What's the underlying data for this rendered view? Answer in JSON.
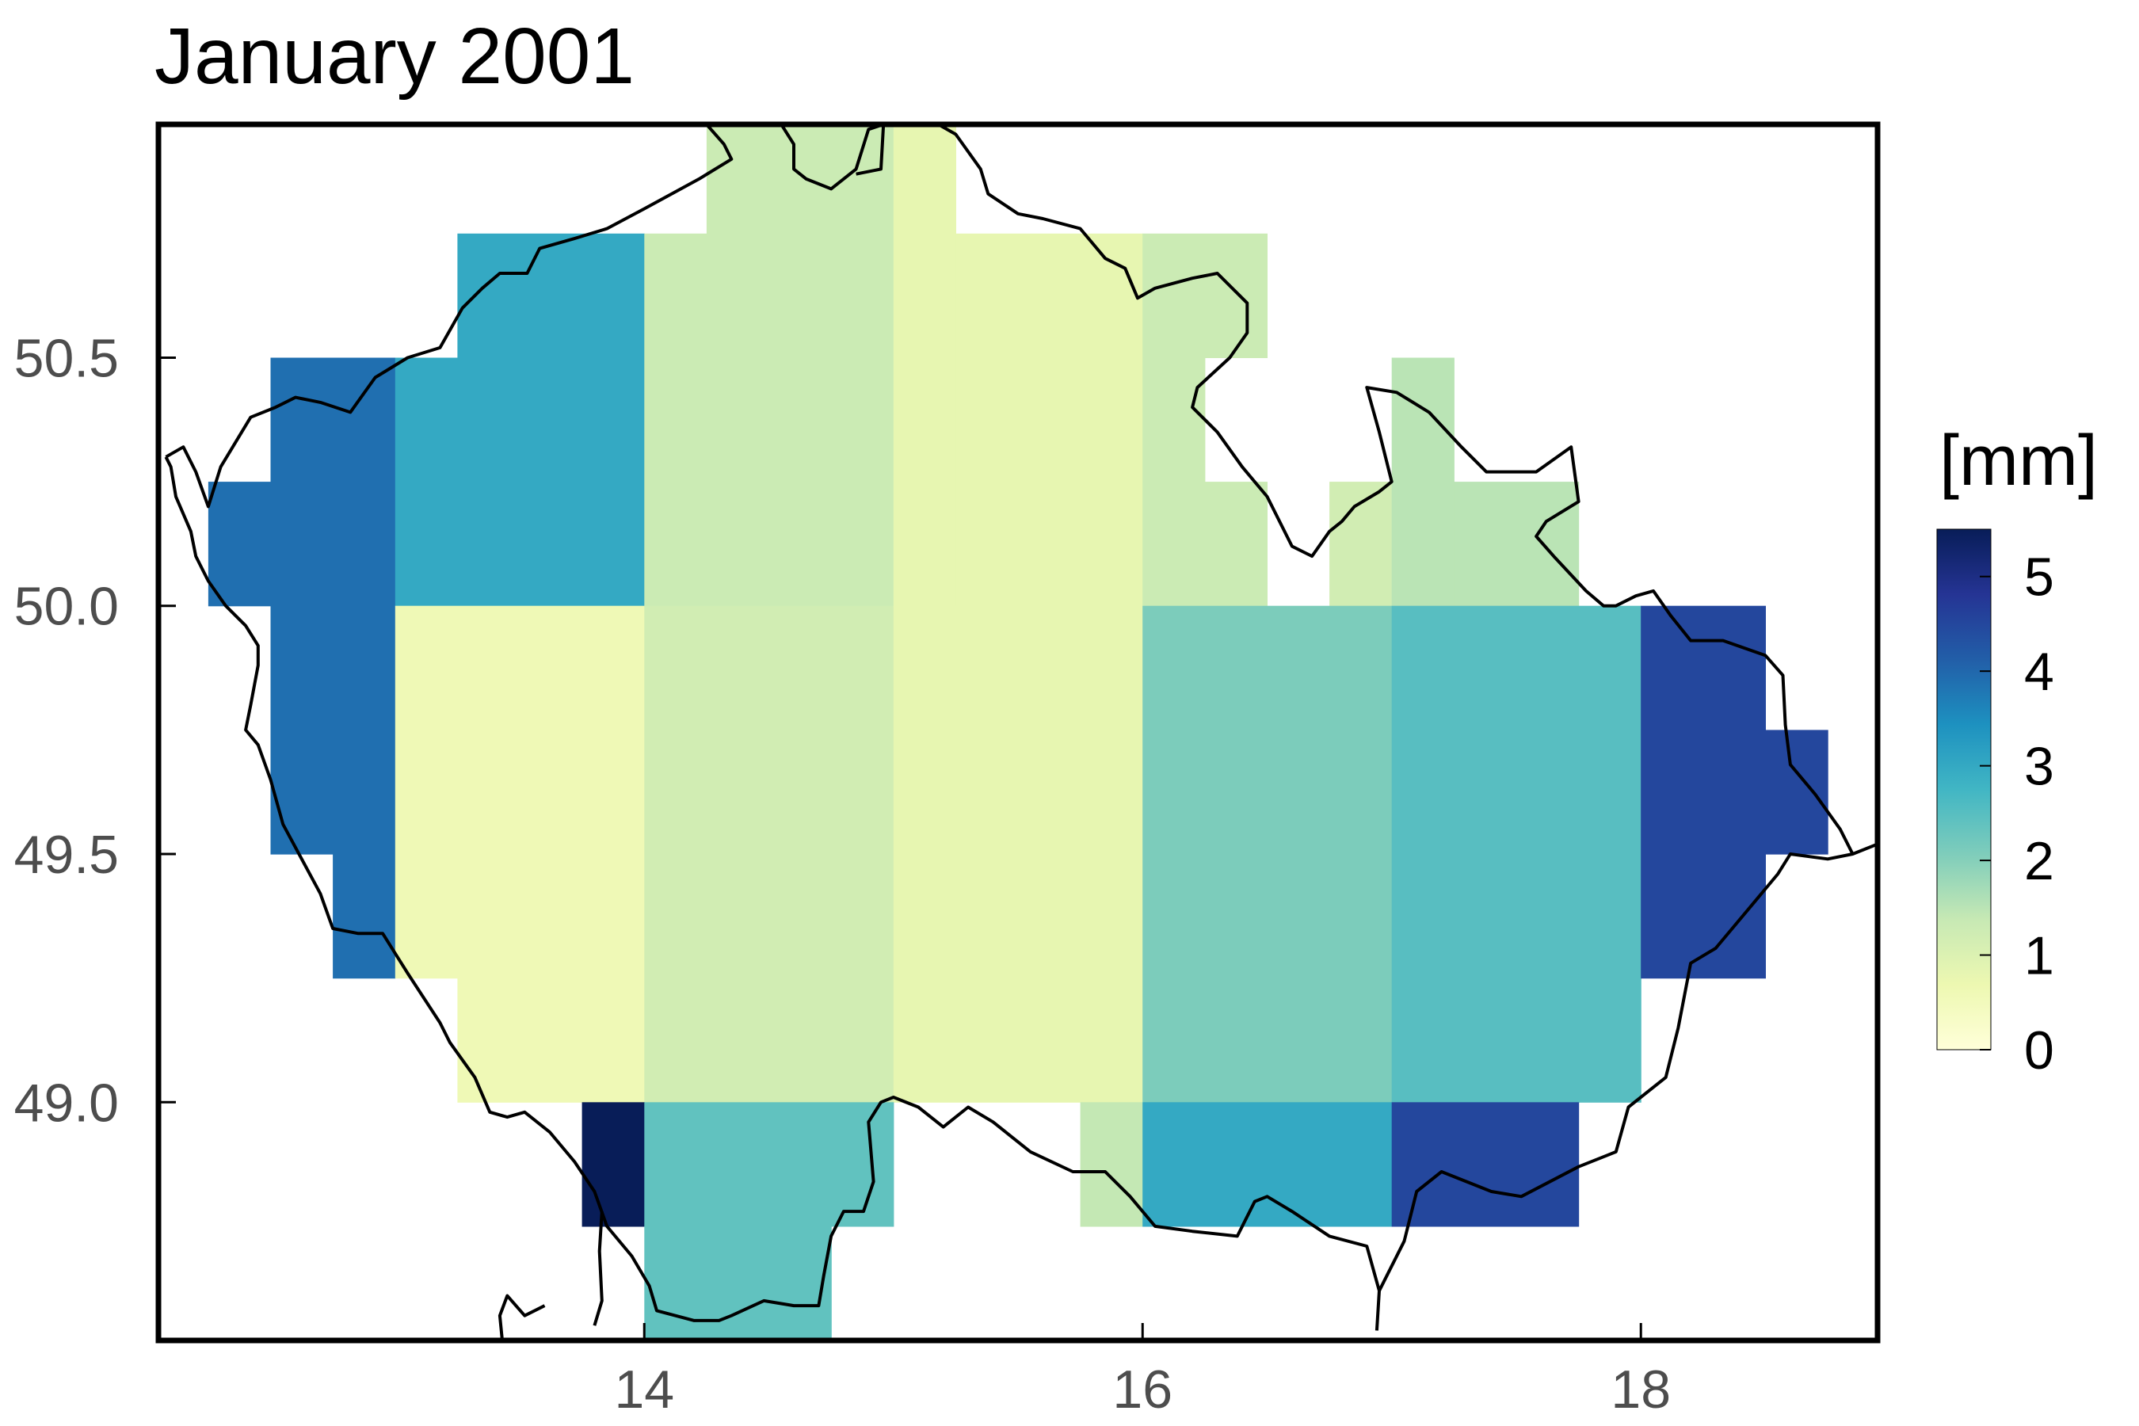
{
  "title": "January 2001",
  "colorbar": {
    "label": "[mm]",
    "range": [
      0,
      5.5
    ],
    "ticks": [
      "0",
      "1",
      "2",
      "3",
      "4",
      "5"
    ],
    "tick_values": [
      0,
      1,
      2,
      3,
      4,
      5
    ],
    "colormap": "YlGnBu",
    "stops": [
      "#ffffd9",
      "#edf8b1",
      "#c7e9b4",
      "#7fcdbb",
      "#41b6c4",
      "#1d91c0",
      "#225ea8",
      "#253494",
      "#081d58"
    ]
  },
  "chart_data": {
    "type": "heatmap",
    "title": "January 2001",
    "xlabel": "",
    "ylabel": "",
    "xlim": [
      12.05,
      18.95
    ],
    "ylim": [
      48.52,
      50.97
    ],
    "x_ticks": [
      "14",
      "16",
      "18"
    ],
    "x_tick_values": [
      14,
      16,
      18
    ],
    "y_ticks": [
      "49.0",
      "49.5",
      "50.0",
      "50.5"
    ],
    "y_tick_values": [
      49.0,
      49.5,
      50.0,
      50.5
    ],
    "units": "[mm]",
    "cells": [
      {
        "x0": 12.25,
        "x1": 12.5,
        "y0": 50.0,
        "y1": 50.25,
        "value": 3.9
      },
      {
        "x0": 12.5,
        "x1": 13.0,
        "y0": 50.0,
        "y1": 50.5,
        "value": 3.9
      },
      {
        "x0": 12.5,
        "x1": 13.0,
        "y0": 49.5,
        "y1": 50.0,
        "value": 3.9
      },
      {
        "x0": 12.75,
        "x1": 13.0,
        "y0": 49.25,
        "y1": 49.5,
        "value": 3.9
      },
      {
        "x0": 13.0,
        "x1": 13.25,
        "y0": 50.0,
        "y1": 50.5,
        "value": 3.0
      },
      {
        "x0": 13.25,
        "x1": 14.0,
        "y0": 50.0,
        "y1": 50.75,
        "value": 3.0
      },
      {
        "x0": 13.0,
        "x1": 14.0,
        "y0": 49.25,
        "y1": 50.0,
        "value": 0.6
      },
      {
        "x0": 13.25,
        "x1": 14.0,
        "y0": 49.0,
        "y1": 49.25,
        "value": 0.6
      },
      {
        "x0": 14.0,
        "x1": 14.25,
        "y0": 50.0,
        "y1": 50.75,
        "value": 1.3
      },
      {
        "x0": 14.25,
        "x1": 15.0,
        "y0": 50.0,
        "y1": 51.0,
        "value": 1.3
      },
      {
        "x0": 14.0,
        "x1": 15.0,
        "y0": 49.0,
        "y1": 50.0,
        "value": 1.2
      },
      {
        "x0": 15.0,
        "x1": 15.25,
        "y0": 50.0,
        "y1": 51.0,
        "value": 0.8
      },
      {
        "x0": 15.25,
        "x1": 16.0,
        "y0": 50.0,
        "y1": 50.75,
        "value": 0.8
      },
      {
        "x0": 15.0,
        "x1": 16.0,
        "y0": 49.0,
        "y1": 50.0,
        "value": 0.8
      },
      {
        "x0": 16.0,
        "x1": 16.5,
        "y0": 50.5,
        "y1": 50.75,
        "value": 1.3
      },
      {
        "x0": 16.0,
        "x1": 16.25,
        "y0": 50.25,
        "y1": 50.5,
        "value": 1.3
      },
      {
        "x0": 16.0,
        "x1": 16.5,
        "y0": 50.0,
        "y1": 50.25,
        "value": 1.3
      },
      {
        "x0": 16.75,
        "x1": 17.0,
        "y0": 50.0,
        "y1": 50.25,
        "value": 1.2
      },
      {
        "x0": 17.0,
        "x1": 17.25,
        "y0": 50.0,
        "y1": 50.5,
        "value": 1.5
      },
      {
        "x0": 17.25,
        "x1": 17.75,
        "y0": 50.0,
        "y1": 50.25,
        "value": 1.5
      },
      {
        "x0": 16.0,
        "x1": 17.0,
        "y0": 49.0,
        "y1": 50.0,
        "value": 2.1
      },
      {
        "x0": 17.0,
        "x1": 18.0,
        "y0": 49.0,
        "y1": 50.0,
        "value": 2.5
      },
      {
        "x0": 18.0,
        "x1": 18.5,
        "y0": 49.25,
        "y1": 50.0,
        "value": 4.5
      },
      {
        "x0": 18.5,
        "x1": 18.75,
        "y0": 49.5,
        "y1": 49.75,
        "value": 4.5
      },
      {
        "x0": 13.75,
        "x1": 14.0,
        "y0": 48.75,
        "y1": 49.0,
        "value": 5.5
      },
      {
        "x0": 14.0,
        "x1": 15.0,
        "y0": 48.75,
        "y1": 49.0,
        "value": 2.4
      },
      {
        "x0": 14.0,
        "x1": 14.75,
        "y0": 48.5,
        "y1": 48.75,
        "value": 2.4
      },
      {
        "x0": 15.75,
        "x1": 16.0,
        "y0": 48.75,
        "y1": 49.0,
        "value": 1.4
      },
      {
        "x0": 16.0,
        "x1": 17.0,
        "y0": 48.75,
        "y1": 49.0,
        "value": 3.0
      },
      {
        "x0": 17.0,
        "x1": 17.75,
        "y0": 48.75,
        "y1": 49.0,
        "value": 4.5
      }
    ],
    "borders": [
      [
        [
          12.08,
          50.3
        ],
        [
          12.15,
          50.32
        ],
        [
          12.2,
          50.27
        ],
        [
          12.25,
          50.2
        ],
        [
          12.3,
          50.28
        ],
        [
          12.42,
          50.38
        ],
        [
          12.52,
          50.4
        ],
        [
          12.6,
          50.42
        ],
        [
          12.7,
          50.41
        ],
        [
          12.82,
          50.39
        ],
        [
          12.92,
          50.46
        ],
        [
          13.05,
          50.5
        ],
        [
          13.18,
          50.52
        ],
        [
          13.27,
          50.6
        ],
        [
          13.35,
          50.64
        ],
        [
          13.42,
          50.67
        ],
        [
          13.53,
          50.67
        ],
        [
          13.58,
          50.72
        ],
        [
          13.72,
          50.74
        ],
        [
          13.85,
          50.76
        ],
        [
          14.0,
          50.8
        ],
        [
          14.22,
          50.86
        ],
        [
          14.35,
          50.9
        ],
        [
          14.32,
          50.93
        ],
        [
          14.25,
          50.97
        ]
      ],
      [
        [
          14.55,
          50.97
        ],
        [
          14.6,
          50.93
        ],
        [
          14.6,
          50.88
        ],
        [
          14.65,
          50.86
        ],
        [
          14.75,
          50.84
        ],
        [
          14.85,
          50.88
        ],
        [
          14.9,
          50.96
        ],
        [
          14.96,
          50.97
        ]
      ],
      [
        [
          14.96,
          50.97
        ],
        [
          14.95,
          50.88
        ],
        [
          14.85,
          50.87
        ]
      ],
      [
        [
          15.18,
          50.97
        ],
        [
          15.25,
          50.95
        ],
        [
          15.35,
          50.88
        ],
        [
          15.38,
          50.83
        ],
        [
          15.5,
          50.79
        ],
        [
          15.6,
          50.78
        ],
        [
          15.75,
          50.76
        ],
        [
          15.85,
          50.7
        ],
        [
          15.93,
          50.68
        ],
        [
          15.98,
          50.62
        ],
        [
          16.05,
          50.64
        ],
        [
          16.2,
          50.66
        ],
        [
          16.3,
          50.67
        ],
        [
          16.42,
          50.61
        ],
        [
          16.42,
          50.55
        ],
        [
          16.35,
          50.5
        ],
        [
          16.22,
          50.44
        ],
        [
          16.2,
          50.4
        ],
        [
          16.3,
          50.35
        ],
        [
          16.4,
          50.28
        ],
        [
          16.5,
          50.22
        ],
        [
          16.6,
          50.12
        ],
        [
          16.68,
          50.1
        ],
        [
          16.75,
          50.15
        ],
        [
          16.8,
          50.17
        ],
        [
          16.85,
          50.2
        ],
        [
          16.95,
          50.23
        ],
        [
          17.0,
          50.25
        ],
        [
          16.95,
          50.35
        ],
        [
          16.9,
          50.44
        ],
        [
          17.02,
          50.43
        ],
        [
          17.15,
          50.39
        ],
        [
          17.28,
          50.32
        ],
        [
          17.38,
          50.27
        ],
        [
          17.58,
          50.27
        ],
        [
          17.72,
          50.32
        ],
        [
          17.75,
          50.21
        ],
        [
          17.62,
          50.17
        ],
        [
          17.58,
          50.14
        ],
        [
          17.65,
          50.1
        ],
        [
          17.78,
          50.03
        ],
        [
          17.85,
          50.0
        ],
        [
          17.9,
          50.0
        ],
        [
          17.98,
          50.02
        ],
        [
          18.05,
          50.03
        ],
        [
          18.12,
          49.98
        ],
        [
          18.2,
          49.93
        ],
        [
          18.33,
          49.93
        ],
        [
          18.5,
          49.9
        ],
        [
          18.57,
          49.86
        ],
        [
          18.58,
          49.76
        ],
        [
          18.6,
          49.68
        ],
        [
          18.7,
          49.62
        ],
        [
          18.8,
          49.55
        ],
        [
          18.85,
          49.5
        ],
        [
          18.95,
          49.52
        ]
      ],
      [
        [
          18.85,
          49.5
        ],
        [
          18.75,
          49.49
        ],
        [
          18.6,
          49.5
        ],
        [
          18.55,
          49.46
        ],
        [
          18.45,
          49.4
        ],
        [
          18.3,
          49.31
        ],
        [
          18.2,
          49.28
        ],
        [
          18.15,
          49.15
        ],
        [
          18.1,
          49.05
        ],
        [
          17.95,
          48.99
        ],
        [
          17.9,
          48.9
        ],
        [
          17.75,
          48.87
        ],
        [
          17.52,
          48.81
        ],
        [
          17.4,
          48.82
        ],
        [
          17.2,
          48.86
        ],
        [
          17.1,
          48.82
        ],
        [
          17.05,
          48.72
        ],
        [
          16.95,
          48.62
        ],
        [
          16.94,
          48.54
        ]
      ],
      [
        [
          16.95,
          48.62
        ],
        [
          16.9,
          48.71
        ],
        [
          16.75,
          48.73
        ],
        [
          16.6,
          48.78
        ],
        [
          16.5,
          48.81
        ],
        [
          16.45,
          48.8
        ],
        [
          16.38,
          48.73
        ],
        [
          16.2,
          48.74
        ],
        [
          16.05,
          48.75
        ],
        [
          15.95,
          48.81
        ],
        [
          15.85,
          48.86
        ],
        [
          15.72,
          48.86
        ],
        [
          15.55,
          48.9
        ],
        [
          15.4,
          48.96
        ],
        [
          15.3,
          48.99
        ],
        [
          15.2,
          48.95
        ],
        [
          15.1,
          48.99
        ],
        [
          15.0,
          49.01
        ],
        [
          14.95,
          49.0
        ],
        [
          14.9,
          48.96
        ],
        [
          14.92,
          48.84
        ],
        [
          14.88,
          48.78
        ],
        [
          14.8,
          48.78
        ],
        [
          14.75,
          48.73
        ],
        [
          14.72,
          48.65
        ],
        [
          14.7,
          48.59
        ],
        [
          14.6,
          48.59
        ],
        [
          14.48,
          48.6
        ],
        [
          14.35,
          48.57
        ],
        [
          14.3,
          48.56
        ],
        [
          14.2,
          48.56
        ],
        [
          14.05,
          48.58
        ],
        [
          14.02,
          48.63
        ],
        [
          13.95,
          48.69
        ],
        [
          13.85,
          48.75
        ],
        [
          13.8,
          48.82
        ],
        [
          13.72,
          48.88
        ],
        [
          13.62,
          48.94
        ],
        [
          13.52,
          48.98
        ],
        [
          13.45,
          48.97
        ],
        [
          13.38,
          48.98
        ],
        [
          13.32,
          49.05
        ],
        [
          13.22,
          49.12
        ],
        [
          13.18,
          49.16
        ],
        [
          13.05,
          49.26
        ],
        [
          12.95,
          49.34
        ],
        [
          12.85,
          49.34
        ],
        [
          12.75,
          49.35
        ],
        [
          12.7,
          49.42
        ],
        [
          12.55,
          49.56
        ],
        [
          12.5,
          49.65
        ],
        [
          12.45,
          49.72
        ],
        [
          12.4,
          49.75
        ],
        [
          12.42,
          49.8
        ],
        [
          12.45,
          49.88
        ],
        [
          12.45,
          49.92
        ],
        [
          12.4,
          49.96
        ],
        [
          12.32,
          50.0
        ],
        [
          12.25,
          50.05
        ],
        [
          12.2,
          50.1
        ],
        [
          12.18,
          50.15
        ],
        [
          12.12,
          50.22
        ],
        [
          12.1,
          50.28
        ],
        [
          12.08,
          50.3
        ]
      ],
      [
        [
          13.83,
          48.78
        ],
        [
          13.82,
          48.7
        ],
        [
          13.83,
          48.6
        ],
        [
          13.8,
          48.55
        ]
      ],
      [
        [
          13.6,
          48.59
        ],
        [
          13.52,
          48.57
        ],
        [
          13.45,
          48.61
        ],
        [
          13.42,
          48.57
        ],
        [
          13.43,
          48.52
        ]
      ]
    ]
  }
}
